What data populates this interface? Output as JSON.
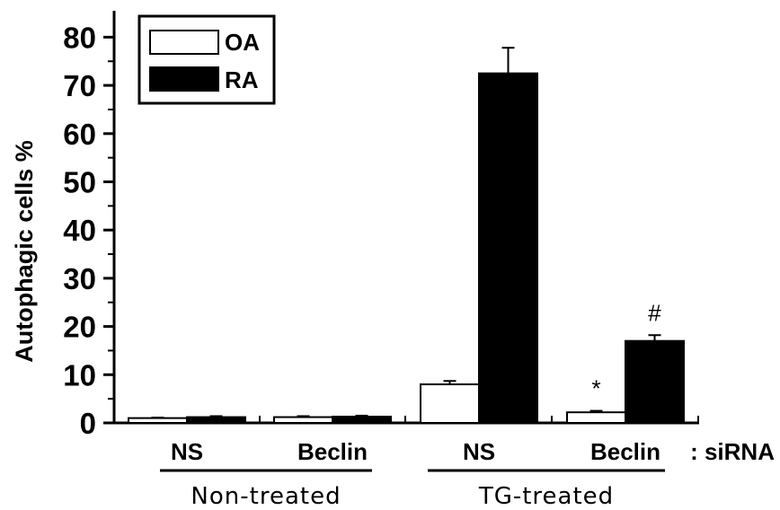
{
  "chart_data": {
    "type": "bar",
    "ylabel": "Autophagic cells %",
    "ylim": [
      0,
      85
    ],
    "yticks": [
      0,
      10,
      20,
      30,
      40,
      50,
      60,
      70,
      80
    ],
    "categories": [
      "NS",
      "Beclin",
      "NS",
      "Beclin"
    ],
    "category_suffix": ": siRNA",
    "groups": [
      {
        "label": "Non-treated",
        "categories": [
          0,
          1
        ]
      },
      {
        "label": "TG-treated",
        "categories": [
          2,
          3
        ]
      }
    ],
    "series": [
      {
        "name": "OA",
        "color": "#ffffff",
        "values": [
          1.0,
          1.2,
          8.0,
          2.2
        ],
        "errors": [
          0.1,
          0.2,
          0.7,
          0.3
        ]
      },
      {
        "name": "RA",
        "color": "#000000",
        "values": [
          1.2,
          1.3,
          72.5,
          17.0
        ],
        "errors": [
          0.2,
          0.2,
          5.3,
          1.2
        ]
      }
    ],
    "annotations": [
      {
        "text": "*",
        "series": 0,
        "category": 3
      },
      {
        "text": "#",
        "series": 1,
        "category": 3
      }
    ],
    "legend": "top-left"
  }
}
